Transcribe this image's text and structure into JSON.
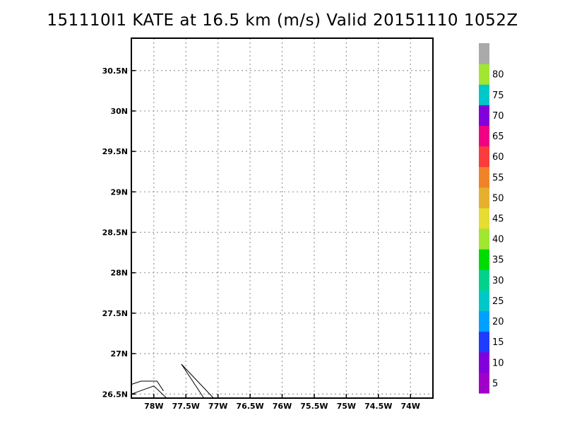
{
  "title": "151110I1 KATE at 16.5 km (m/s) Valid 20151110 1052Z",
  "map": {
    "lon_range": [
      -78.35,
      -73.65
    ],
    "lat_range": [
      26.45,
      30.9
    ],
    "lon_ticks": [
      {
        "value": -78.0,
        "label": "78W"
      },
      {
        "value": -77.5,
        "label": "77.5W"
      },
      {
        "value": -77.0,
        "label": "77W"
      },
      {
        "value": -76.5,
        "label": "76.5W"
      },
      {
        "value": -76.0,
        "label": "76W"
      },
      {
        "value": -75.5,
        "label": "75.5W"
      },
      {
        "value": -75.0,
        "label": "75W"
      },
      {
        "value": -74.5,
        "label": "74.5W"
      },
      {
        "value": -74.0,
        "label": "74W"
      }
    ],
    "lat_ticks": [
      {
        "value": 26.5,
        "label": "26.5N"
      },
      {
        "value": 27.0,
        "label": "27N"
      },
      {
        "value": 27.5,
        "label": "27.5N"
      },
      {
        "value": 28.0,
        "label": "28N"
      },
      {
        "value": 28.5,
        "label": "28.5N"
      },
      {
        "value": 29.0,
        "label": "29N"
      },
      {
        "value": 29.5,
        "label": "29.5N"
      },
      {
        "value": 30.0,
        "label": "30N"
      },
      {
        "value": 30.5,
        "label": "30.5N"
      }
    ],
    "grid": true,
    "coastlines": [
      [
        [
          -78.35,
          26.62
        ],
        [
          -78.2,
          26.66
        ],
        [
          -77.95,
          26.66
        ],
        [
          -77.85,
          26.54
        ]
      ],
      [
        [
          -78.35,
          26.5
        ],
        [
          -78.0,
          26.6
        ],
        [
          -77.8,
          26.45
        ]
      ],
      [
        [
          -77.57,
          26.87
        ],
        [
          -77.22,
          26.45
        ]
      ],
      [
        [
          -77.57,
          26.87
        ],
        [
          -77.07,
          26.45
        ]
      ]
    ]
  },
  "colorbar": {
    "segments": [
      {
        "from": 0,
        "to": 5,
        "color": "#a000c8"
      },
      {
        "from": 5,
        "to": 10,
        "color": "#8200dc"
      },
      {
        "from": 10,
        "to": 15,
        "color": "#1e3cff"
      },
      {
        "from": 15,
        "to": 20,
        "color": "#00a0ff"
      },
      {
        "from": 20,
        "to": 25,
        "color": "#00c8c8"
      },
      {
        "from": 25,
        "to": 30,
        "color": "#00d28c"
      },
      {
        "from": 30,
        "to": 35,
        "color": "#00dc00"
      },
      {
        "from": 35,
        "to": 40,
        "color": "#a0e632"
      },
      {
        "from": 40,
        "to": 45,
        "color": "#e6dc32"
      },
      {
        "from": 45,
        "to": 50,
        "color": "#e6af2d"
      },
      {
        "from": 50,
        "to": 55,
        "color": "#f08228"
      },
      {
        "from": 55,
        "to": 60,
        "color": "#fa3c3c"
      },
      {
        "from": 60,
        "to": 65,
        "color": "#f00082"
      },
      {
        "from": 65,
        "to": 70,
        "color": "#8200dc"
      },
      {
        "from": 70,
        "to": 75,
        "color": "#00c8c8"
      },
      {
        "from": 75,
        "to": 80,
        "color": "#a0e632"
      },
      {
        "from": 80,
        "to": 85,
        "color": "#aaaaaa"
      }
    ],
    "labels": [
      "5",
      "10",
      "15",
      "20",
      "25",
      "30",
      "35",
      "40",
      "45",
      "50",
      "55",
      "60",
      "65",
      "70",
      "75",
      "80"
    ]
  }
}
